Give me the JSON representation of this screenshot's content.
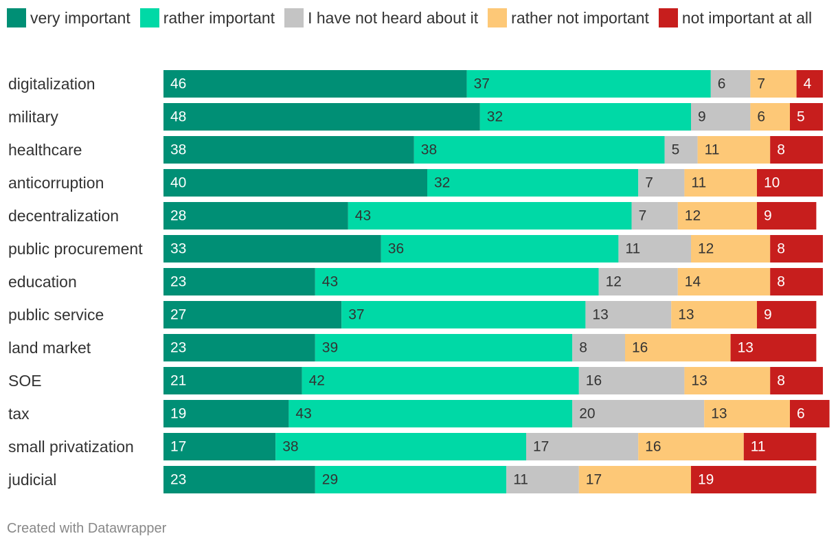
{
  "chart_data": {
    "type": "bar",
    "orientation": "horizontal",
    "stacked": true,
    "title": "",
    "xlabel": "",
    "ylabel": "",
    "xlim": [
      0,
      100
    ],
    "legend_position": "top",
    "categories": [
      "digitalization",
      "military",
      "healthcare",
      "anticorruption",
      "decentralization",
      "public procurement",
      "education",
      "public service",
      "land market",
      "SOE",
      "tax",
      "small privatization",
      "judicial"
    ],
    "series": [
      {
        "name": "very important",
        "color": "#008f75",
        "label_color": "#ffffff",
        "values": [
          46,
          48,
          38,
          40,
          28,
          33,
          23,
          27,
          23,
          21,
          19,
          17,
          23
        ]
      },
      {
        "name": "rather important",
        "color": "#00d9a6",
        "label_color": "#333333",
        "values": [
          37,
          32,
          38,
          32,
          43,
          36,
          43,
          37,
          39,
          42,
          43,
          38,
          29
        ]
      },
      {
        "name": "I have not heard about it",
        "color": "#c4c4c4",
        "label_color": "#333333",
        "values": [
          6,
          9,
          5,
          7,
          7,
          11,
          12,
          13,
          8,
          16,
          20,
          17,
          11
        ]
      },
      {
        "name": "rather not important",
        "color": "#fdc877",
        "label_color": "#333333",
        "values": [
          7,
          6,
          11,
          11,
          12,
          12,
          14,
          13,
          16,
          13,
          13,
          16,
          17
        ]
      },
      {
        "name": "not important at all",
        "color": "#c71e1d",
        "label_color": "#ffffff",
        "values": [
          4,
          5,
          8,
          10,
          9,
          8,
          8,
          9,
          13,
          8,
          6,
          11,
          19
        ]
      }
    ]
  },
  "footer": {
    "credit": "Created with Datawrapper"
  }
}
